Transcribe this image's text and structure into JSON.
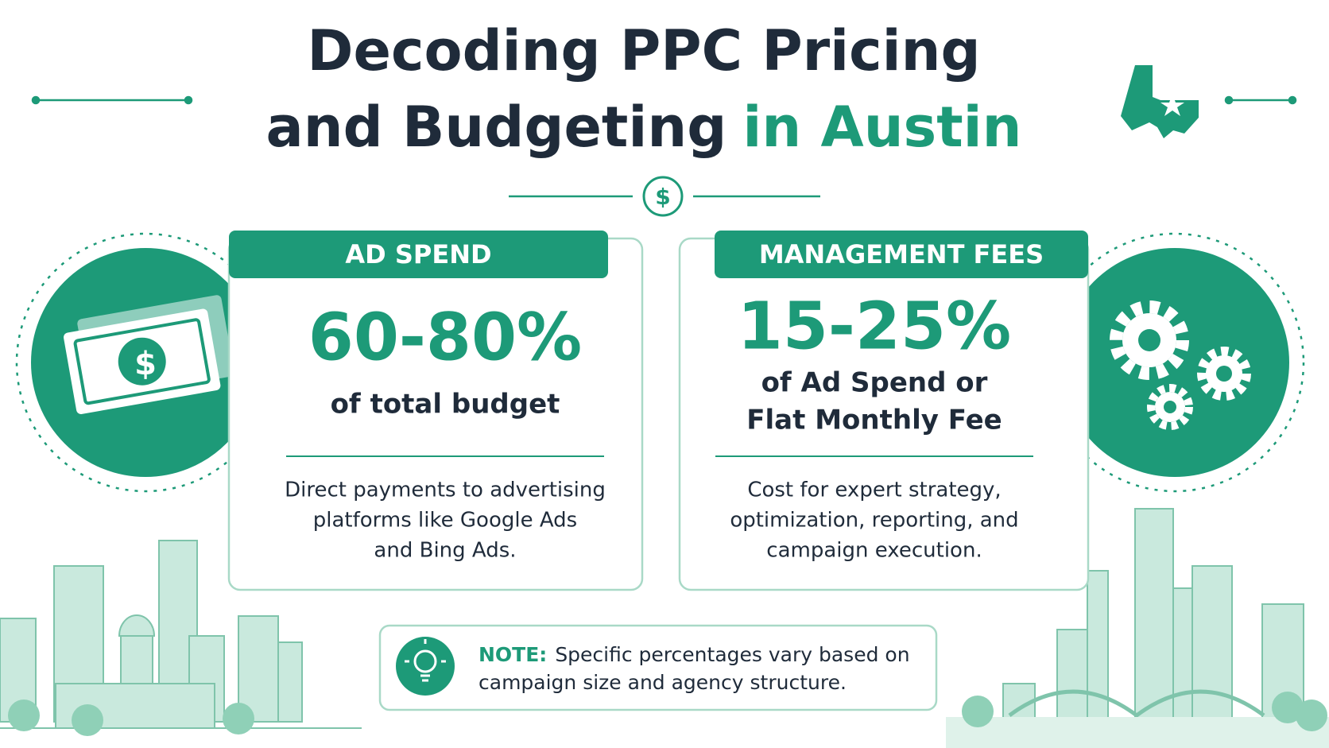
{
  "header": {
    "title_line1": "Decoding PPC Pricing",
    "title_line2": "and Budgeting",
    "title_highlight": "in Austin"
  },
  "icons": {
    "dollar": "$"
  },
  "cards": [
    {
      "heading": "AD SPEND",
      "figure": "60-80%",
      "subtitle_lines": [
        "of total budget"
      ],
      "description_lines": [
        "Direct payments to advertising",
        "platforms like Google Ads",
        "and Bing Ads."
      ]
    },
    {
      "heading": "MANAGEMENT FEES",
      "figure": "15-25%",
      "subtitle_lines": [
        "of Ad Spend or",
        "Flat Monthly Fee"
      ],
      "description_lines": [
        "Cost for expert strategy,",
        "optimization, reporting, and",
        "campaign execution."
      ]
    }
  ],
  "note": {
    "label": "NOTE:",
    "lines": [
      "Specific percentages vary based on",
      "campaign size and agency structure."
    ]
  }
}
